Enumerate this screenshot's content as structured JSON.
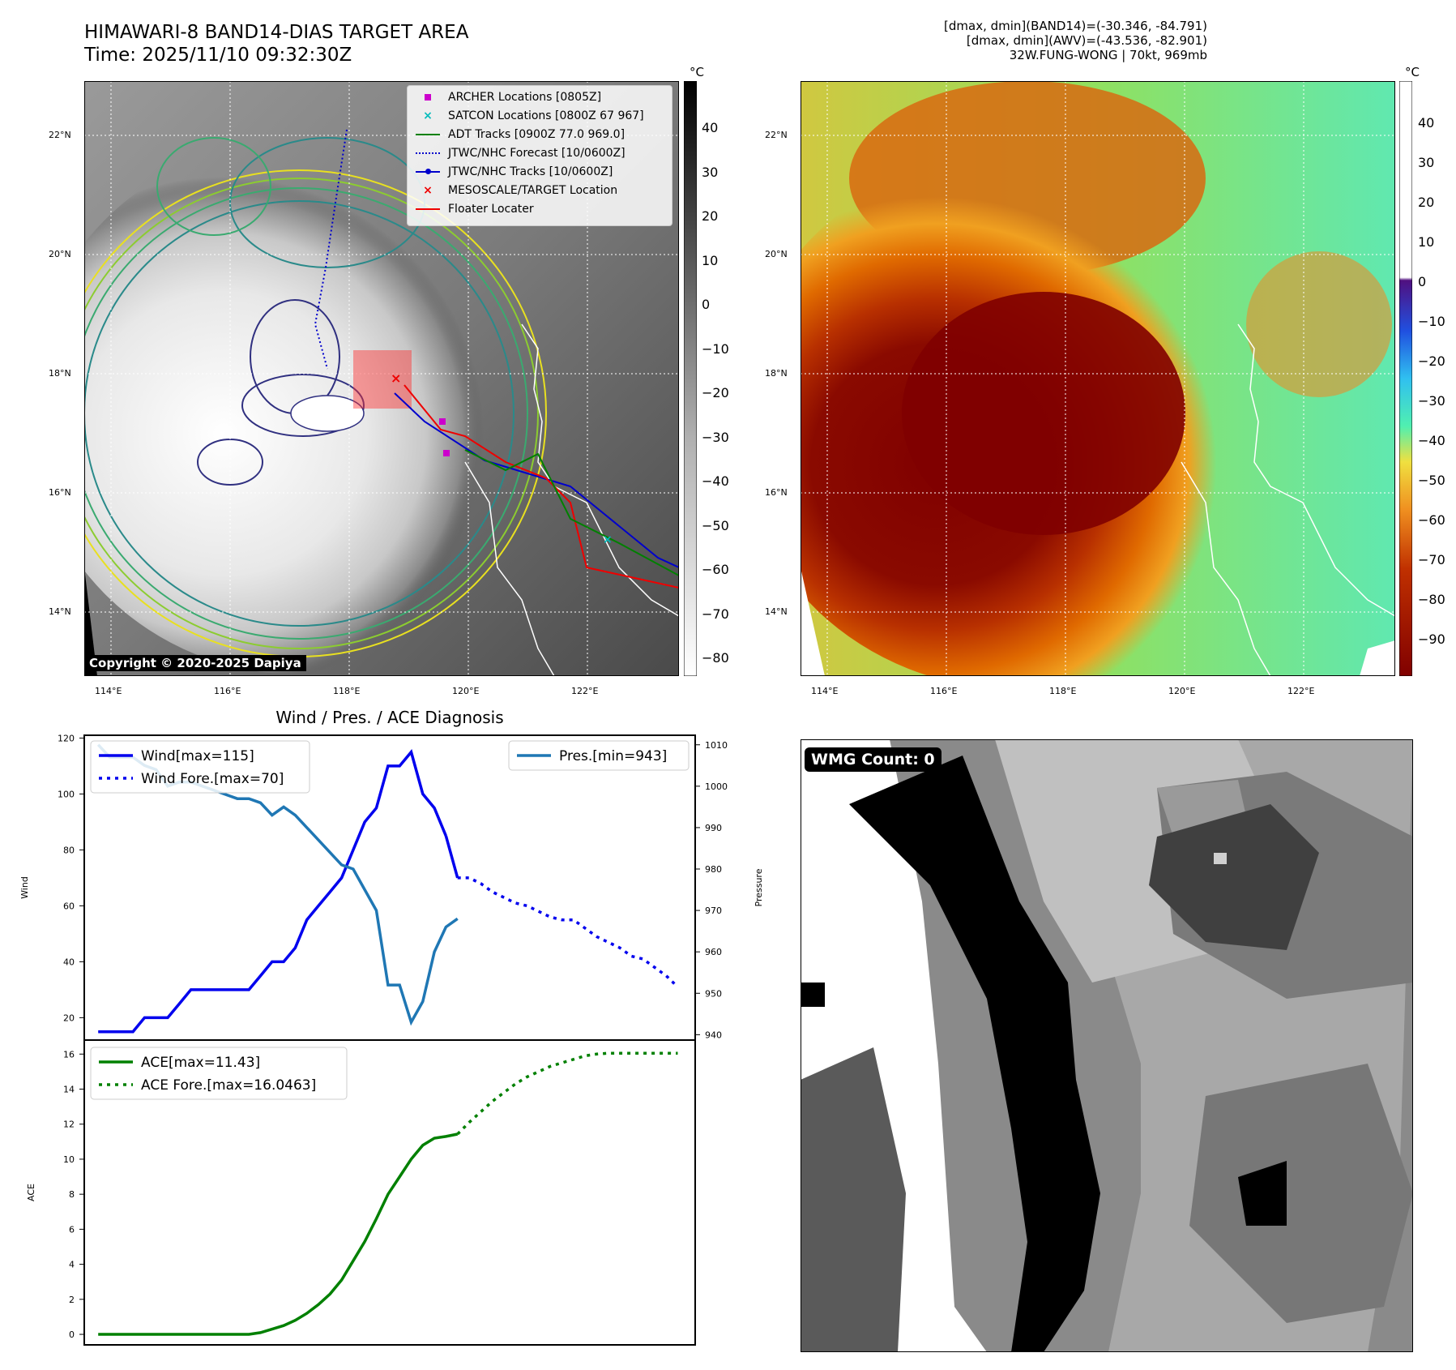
{
  "header": {
    "title_line1": "HIMAWARI-8 BAND14-DIAS TARGET AREA",
    "title_line2": "Time: 2025/11/10 09:32:30Z",
    "info_line1": "[dmax, dmin](BAND14)=(-30.346, -84.791)",
    "info_line2": "[dmax, dmin](AWV)=(-43.536, -82.901)",
    "info_line3": "32W.FUNG-WONG | 70kt, 969mb"
  },
  "map_left": {
    "copyright": "Copyright © 2020-2025 Dapiya",
    "colorbar_unit": "°C",
    "colorbar_ticks": [
      "40",
      "30",
      "20",
      "10",
      "0",
      "−10",
      "−20",
      "−30",
      "−40",
      "−50",
      "−60",
      "−70",
      "−80"
    ],
    "lat_labels": [
      "22°N",
      "20°N",
      "18°N",
      "16°N",
      "14°N"
    ],
    "lon_labels": [
      "114°E",
      "116°E",
      "118°E",
      "120°E",
      "122°E"
    ],
    "legend": [
      {
        "label": "ARCHER Locations [0805Z]",
        "color": "#cc00cc",
        "marker": "square"
      },
      {
        "label": "SATCON Locations [0800Z 67 967]",
        "color": "#00bbbb",
        "marker": "x"
      },
      {
        "label": "ADT Tracks [0900Z 77.0 969.0]",
        "color": "#008000",
        "marker": "line"
      },
      {
        "label": "JTWC/NHC Forecast [10/0600Z]",
        "color": "#0000cc",
        "marker": "dotted"
      },
      {
        "label": "JTWC/NHC Tracks [10/0600Z]",
        "color": "#0000cc",
        "marker": "line-dot"
      },
      {
        "label": "MESOSCALE/TARGET Location",
        "color": "#ee0000",
        "marker": "x"
      },
      {
        "label": "Floater Locater",
        "color": "#ee0000",
        "marker": "line"
      }
    ]
  },
  "map_right": {
    "colorbar_unit": "°C",
    "colorbar_ticks": [
      "40",
      "30",
      "20",
      "10",
      "0",
      "−10",
      "−20",
      "−30",
      "−40",
      "−50",
      "−60",
      "−70",
      "−80",
      "−90"
    ],
    "lat_labels": [
      "22°N",
      "20°N",
      "18°N",
      "16°N",
      "14°N"
    ],
    "lon_labels": [
      "114°E",
      "116°E",
      "118°E",
      "120°E",
      "122°E"
    ]
  },
  "wmg": {
    "badge": "WMG Count: 0"
  },
  "colors": {
    "wind": "#0000ee",
    "pressure": "#1f77b4",
    "ace": "#008000"
  },
  "chart_data": [
    {
      "type": "line",
      "title": "Wind / Pres. / ACE Diagnosis",
      "ylabel": "Wind",
      "y2label": "Pressure",
      "ylim": [
        12,
        121
      ],
      "y2lim": [
        938.7,
        1012.3
      ],
      "yticks": [
        20,
        40,
        60,
        80,
        100,
        120
      ],
      "y2ticks": [
        940,
        950,
        960,
        970,
        980,
        990,
        1000,
        1010
      ],
      "legend_left": [
        "Wind[max=115]",
        "Wind Fore.[max=70]"
      ],
      "legend_right": [
        "Pres.[min=943]"
      ],
      "series": [
        {
          "name": "Wind[max=115]",
          "axis": "left",
          "style": "solid",
          "x": [
            0,
            1,
            2,
            3,
            4,
            5,
            6,
            7,
            8,
            9,
            10,
            11,
            12,
            13,
            14,
            15,
            16,
            17,
            18,
            19,
            20,
            21,
            22,
            23,
            24,
            25,
            26,
            27,
            28,
            29,
            30
          ],
          "values": [
            15,
            15,
            15,
            15,
            20,
            20,
            20,
            25,
            30,
            30,
            30,
            30,
            30,
            30,
            35,
            40,
            40,
            45,
            55,
            60,
            65,
            70,
            80,
            90,
            95,
            110,
            110,
            115,
            100,
            95,
            85
          ]
        },
        {
          "name": "Wind (tail)",
          "axis": "left",
          "style": "solid",
          "x": [
            30,
            31
          ],
          "values": [
            85,
            70
          ]
        },
        {
          "name": "Wind Fore.[max=70]",
          "axis": "left",
          "style": "dotted",
          "x": [
            31,
            32,
            33,
            34,
            35,
            36,
            37,
            38,
            39,
            40,
            41,
            42,
            43,
            44,
            45,
            46,
            47,
            48,
            49,
            50
          ],
          "values": [
            70,
            70,
            68,
            65,
            63,
            61,
            60,
            58,
            56,
            55,
            55,
            52,
            49,
            47,
            45,
            42,
            41,
            38,
            35,
            31
          ]
        },
        {
          "name": "Pres.[min=943]",
          "axis": "right",
          "style": "solid",
          "x": [
            0,
            1,
            2,
            3,
            4,
            5,
            6,
            7,
            8,
            9,
            10,
            11,
            12,
            13,
            14,
            15,
            16,
            17,
            18,
            19,
            20,
            21,
            22,
            23,
            24,
            25,
            26,
            27,
            28,
            29,
            30,
            31
          ],
          "values": [
            1010,
            1007,
            1007,
            1007,
            1005,
            1004,
            1000,
            1001,
            1001,
            1000,
            999,
            998,
            997,
            997,
            996,
            993,
            995,
            993,
            990,
            987,
            984,
            981,
            980,
            975,
            970,
            952,
            952,
            943,
            948,
            960,
            966,
            968
          ]
        }
      ]
    },
    {
      "type": "line",
      "ylabel": "ACE",
      "ylim": [
        -0.6,
        16.8
      ],
      "yticks": [
        0,
        2,
        4,
        6,
        8,
        10,
        12,
        14,
        16
      ],
      "legend": [
        "ACE[max=11.43]",
        "ACE Fore.[max=16.0463]"
      ],
      "series": [
        {
          "name": "ACE[max=11.43]",
          "style": "solid",
          "x": [
            0,
            1,
            2,
            3,
            4,
            5,
            6,
            7,
            8,
            9,
            10,
            11,
            12,
            13,
            14,
            15,
            16,
            17,
            18,
            19,
            20,
            21,
            22,
            23,
            24,
            25,
            26,
            27,
            28,
            29,
            30,
            31
          ],
          "values": [
            0,
            0,
            0,
            0,
            0,
            0,
            0,
            0,
            0,
            0,
            0,
            0,
            0,
            0,
            0.1,
            0.3,
            0.5,
            0.8,
            1.2,
            1.7,
            2.3,
            3.1,
            4.2,
            5.3,
            6.6,
            8.0,
            9.0,
            10.0,
            10.8,
            11.2,
            11.3,
            11.43
          ]
        },
        {
          "name": "ACE Fore.[max=16.0463]",
          "style": "dotted",
          "x": [
            31,
            32,
            33,
            34,
            35,
            36,
            37,
            38,
            39,
            40,
            41,
            42,
            43,
            44,
            45,
            46,
            47,
            48,
            49,
            50
          ],
          "values": [
            11.43,
            12.1,
            12.7,
            13.3,
            13.8,
            14.3,
            14.7,
            15.0,
            15.3,
            15.5,
            15.7,
            15.9,
            16.0,
            16.05,
            16.05,
            16.05,
            16.05,
            16.05,
            16.05,
            16.0463
          ]
        }
      ]
    }
  ]
}
